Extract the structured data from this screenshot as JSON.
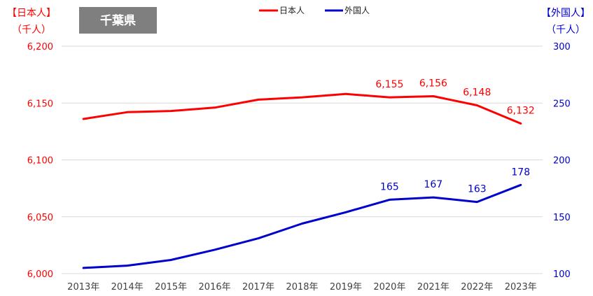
{
  "chart_data": {
    "type": "line",
    "title": "千葉県",
    "categories": [
      "2013年",
      "2014年",
      "2015年",
      "2016年",
      "2017年",
      "2018年",
      "2019年",
      "2020年",
      "2021年",
      "2022年",
      "2023年"
    ],
    "y_left": {
      "label": "【日本人】",
      "unit": "（千人）",
      "range": [
        6000,
        6200
      ],
      "ticks": [
        6000,
        6050,
        6100,
        6150,
        6200
      ],
      "tick_labels": [
        "6,000",
        "6,050",
        "6,100",
        "6,150",
        "6,200"
      ],
      "color": "#FF0000"
    },
    "y_right": {
      "label": "【外国人】",
      "unit": "（千人）",
      "range": [
        100,
        300
      ],
      "ticks": [
        100,
        150,
        200,
        250,
        300
      ],
      "tick_labels": [
        "100",
        "150",
        "200",
        "250",
        "300"
      ],
      "color": "#0000CC"
    },
    "series": [
      {
        "name": "日本人",
        "axis": "left",
        "color": "#FF0000",
        "values": [
          6136,
          6142,
          6143,
          6146,
          6153,
          6155,
          6158,
          6155,
          6156,
          6148,
          6132
        ],
        "data_labels": [
          null,
          null,
          null,
          null,
          null,
          null,
          null,
          "6,155",
          "6,156",
          "6,148",
          "6,132"
        ]
      },
      {
        "name": "外国人",
        "axis": "right",
        "color": "#0000CC",
        "values": [
          105,
          107,
          112,
          121,
          131,
          144,
          154,
          165,
          167,
          163,
          178
        ],
        "data_labels": [
          null,
          null,
          null,
          null,
          null,
          null,
          null,
          "165",
          "167",
          "163",
          "178"
        ]
      }
    ],
    "grid": true,
    "legend_position": "top-center"
  }
}
